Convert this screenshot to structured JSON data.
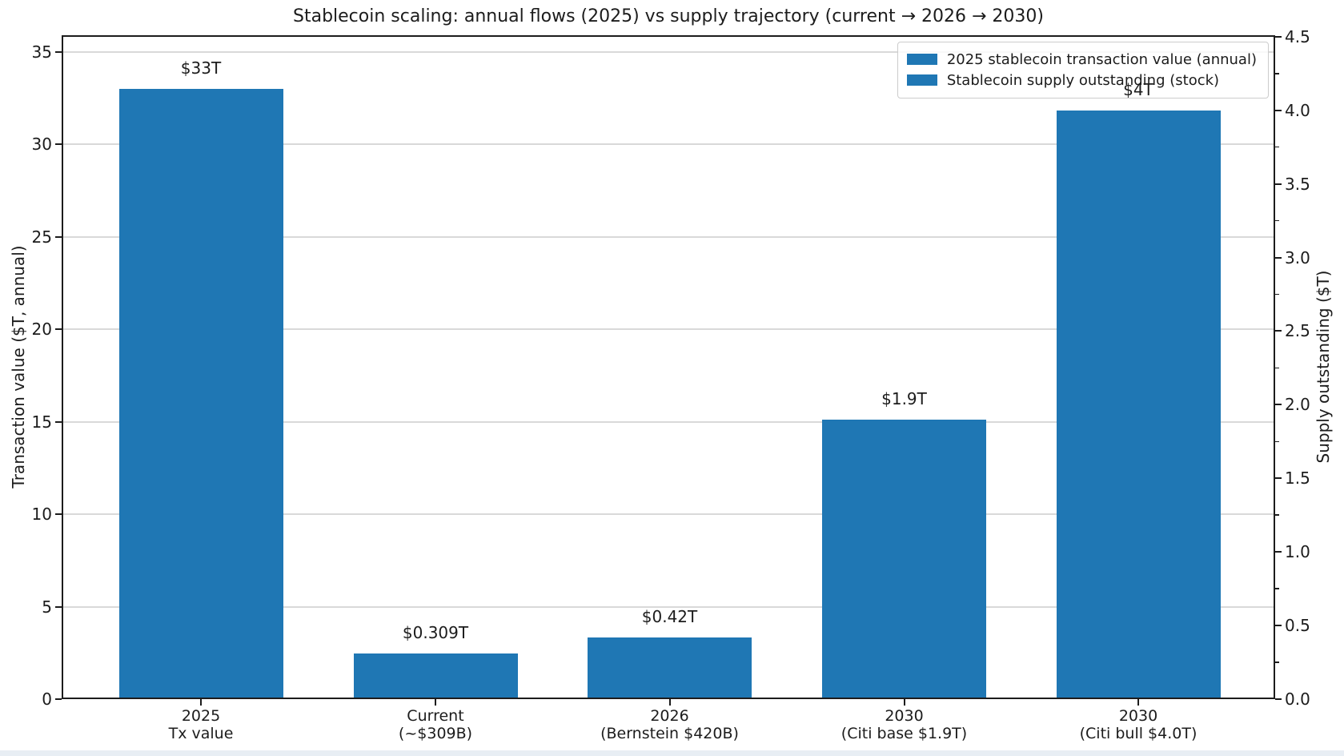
{
  "chart_data": {
    "type": "bar",
    "title": "Stablecoin scaling: annual flows (2025) vs supply trajectory (current → 2026 → 2030)",
    "categories": [
      [
        "2025",
        "Tx value"
      ],
      [
        "Current",
        "(~$309B)"
      ],
      [
        "2026",
        "(Bernstein $420B)"
      ],
      [
        "2030",
        "(Citi base $1.9T)"
      ],
      [
        "2030",
        "(Citi bull $4.0T)"
      ]
    ],
    "series": [
      {
        "name": "2025 stablecoin transaction value (annual)",
        "axis": "left",
        "values": [
          33,
          null,
          null,
          null,
          null
        ]
      },
      {
        "name": "Stablecoin supply outstanding (stock)",
        "axis": "right",
        "values": [
          null,
          0.309,
          0.42,
          1.9,
          4.0
        ]
      }
    ],
    "bars": [
      {
        "axis": "left",
        "value": 33,
        "label": "$33T"
      },
      {
        "axis": "right",
        "value": 0.309,
        "label": "$0.309T"
      },
      {
        "axis": "right",
        "value": 0.42,
        "label": "$0.42T"
      },
      {
        "axis": "right",
        "value": 1.9,
        "label": "$1.9T"
      },
      {
        "axis": "right",
        "value": 4.0,
        "label": "$4T"
      }
    ],
    "axes": {
      "left": {
        "label": "Transaction value ($T, annual)",
        "tick_labels": [
          "0",
          "5",
          "10",
          "15",
          "20",
          "25",
          "30",
          "35"
        ],
        "tick_values": [
          0,
          5,
          10,
          15,
          20,
          25,
          30,
          35
        ],
        "max": 35.9
      },
      "right": {
        "label": "Supply outstanding ($T)",
        "tick_labels": [
          "0.0",
          "0.5",
          "1.0",
          "1.5",
          "2.0",
          "2.5",
          "3.0",
          "3.5",
          "4.0",
          "4.5"
        ],
        "tick_values": [
          0,
          0.5,
          1.0,
          1.5,
          2.0,
          2.5,
          3.0,
          3.5,
          4.0,
          4.5
        ],
        "minor_tick_values": [
          0.25,
          0.75,
          1.25,
          1.75,
          2.25,
          2.75,
          3.25,
          3.75,
          4.25
        ],
        "max": 4.51
      }
    },
    "legend": {
      "position": "upper right",
      "entries": [
        "2025 stablecoin transaction value (annual)",
        "Stablecoin supply outstanding (stock)"
      ]
    },
    "grid": "horizontal lines at left-axis ticks",
    "colors": {
      "bar": "#1f77b4",
      "grid": "#d9d9d9",
      "spine": "#1c1c1c",
      "text": "#1c1c1c",
      "legend_border": "#cccccc",
      "bottom_strip": "#e8eef4"
    }
  }
}
